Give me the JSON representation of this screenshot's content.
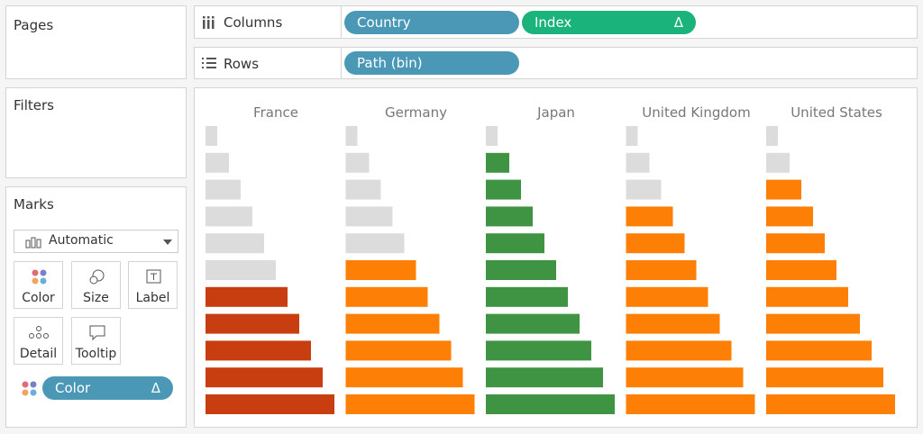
{
  "sidebar": {
    "pages": "Pages",
    "filters": "Filters",
    "marks": {
      "title": "Marks",
      "mark_type": "Automatic",
      "cards": [
        "Color",
        "Size",
        "Label",
        "Detail",
        "Tooltip"
      ],
      "pill": "Color"
    }
  },
  "shelves": {
    "columns": {
      "label": "Columns",
      "pills": [
        "Country",
        "Index"
      ]
    },
    "rows": {
      "label": "Rows",
      "pills": [
        "Path (bin)"
      ]
    }
  },
  "view": {
    "xlim": [
      0,
      12
    ],
    "panes": [
      {
        "country": "France",
        "values": [
          1,
          2,
          3,
          4,
          5,
          6,
          7,
          8,
          9,
          10,
          11
        ],
        "colors": [
          "#dcdcdc",
          "#dcdcdc",
          "#dcdcdc",
          "#dcdcdc",
          "#dcdcdc",
          "#dcdcdc",
          "#c83e10",
          "#c83e10",
          "#c83e10",
          "#c83e10",
          "#c83e10"
        ]
      },
      {
        "country": "Germany",
        "values": [
          1,
          2,
          3,
          4,
          5,
          6,
          7,
          8,
          9,
          10,
          11
        ],
        "colors": [
          "#dcdcdc",
          "#dcdcdc",
          "#dcdcdc",
          "#dcdcdc",
          "#dcdcdc",
          "#fe7f06",
          "#fe7f06",
          "#fe7f06",
          "#fe7f06",
          "#fe7f06",
          "#fe7f06"
        ]
      },
      {
        "country": "Japan",
        "values": [
          1,
          2,
          3,
          4,
          5,
          6,
          7,
          8,
          9,
          10,
          11
        ],
        "colors": [
          "#dcdcdc",
          "#3e9442",
          "#3e9442",
          "#3e9442",
          "#3e9442",
          "#3e9442",
          "#3e9442",
          "#3e9442",
          "#3e9442",
          "#3e9442",
          "#3e9442"
        ]
      },
      {
        "country": "United Kingdom",
        "values": [
          1,
          2,
          3,
          4,
          5,
          6,
          7,
          8,
          9,
          10,
          11
        ],
        "colors": [
          "#dcdcdc",
          "#dcdcdc",
          "#dcdcdc",
          "#fe7f06",
          "#fe7f06",
          "#fe7f06",
          "#fe7f06",
          "#fe7f06",
          "#fe7f06",
          "#fe7f06",
          "#fe7f06"
        ]
      },
      {
        "country": "United States",
        "values": [
          1,
          2,
          3,
          4,
          5,
          6,
          7,
          8,
          9,
          10,
          11
        ],
        "colors": [
          "#dcdcdc",
          "#dcdcdc",
          "#fe7f06",
          "#fe7f06",
          "#fe7f06",
          "#fe7f06",
          "#fe7f06",
          "#fe7f06",
          "#fe7f06",
          "#fe7f06",
          "#fe7f06"
        ]
      }
    ]
  }
}
